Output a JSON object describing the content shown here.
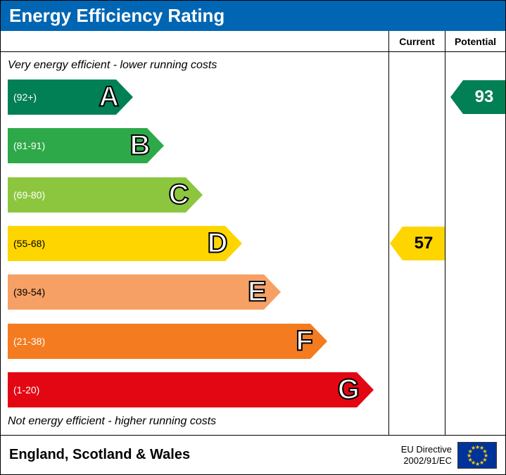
{
  "title": "Energy Efficiency Rating",
  "header_bg": "#0066b3",
  "columns": {
    "current": "Current",
    "potential": "Potential"
  },
  "top_caption": "Very energy efficient - lower running costs",
  "bottom_caption": "Not energy efficient - higher running costs",
  "bands": [
    {
      "letter": "A",
      "range": "(92+)",
      "color": "#008054",
      "width_pct": 28,
      "text_color": "#ffffff"
    },
    {
      "letter": "B",
      "range": "(81-91)",
      "color": "#2ea949",
      "width_pct": 36,
      "text_color": "#ffffff"
    },
    {
      "letter": "C",
      "range": "(69-80)",
      "color": "#8cc63f",
      "width_pct": 46,
      "text_color": "#ffffff"
    },
    {
      "letter": "D",
      "range": "(55-68)",
      "color": "#ffd500",
      "width_pct": 56,
      "text_color": "#000000"
    },
    {
      "letter": "E",
      "range": "(39-54)",
      "color": "#f7a065",
      "width_pct": 66,
      "text_color": "#000000"
    },
    {
      "letter": "F",
      "range": "(21-38)",
      "color": "#f47b20",
      "width_pct": 78,
      "text_color": "#ffffff"
    },
    {
      "letter": "G",
      "range": "(1-20)",
      "color": "#e30613",
      "width_pct": 90,
      "text_color": "#ffffff"
    }
  ],
  "current_rating": {
    "value": 57,
    "band_index": 3,
    "color": "#ffd500",
    "text_color": "#000000"
  },
  "potential_rating": {
    "value": 93,
    "band_index": 0,
    "color": "#008054",
    "text_color": "#ffffff"
  },
  "footer": {
    "region": "England, Scotland & Wales",
    "directive_line1": "EU Directive",
    "directive_line2": "2002/91/EC"
  },
  "fonts": {
    "title": 26,
    "caption": 16,
    "band_range": 14,
    "band_letter": 40,
    "rating": 24,
    "footer_region": 20,
    "footer_directive": 13
  }
}
